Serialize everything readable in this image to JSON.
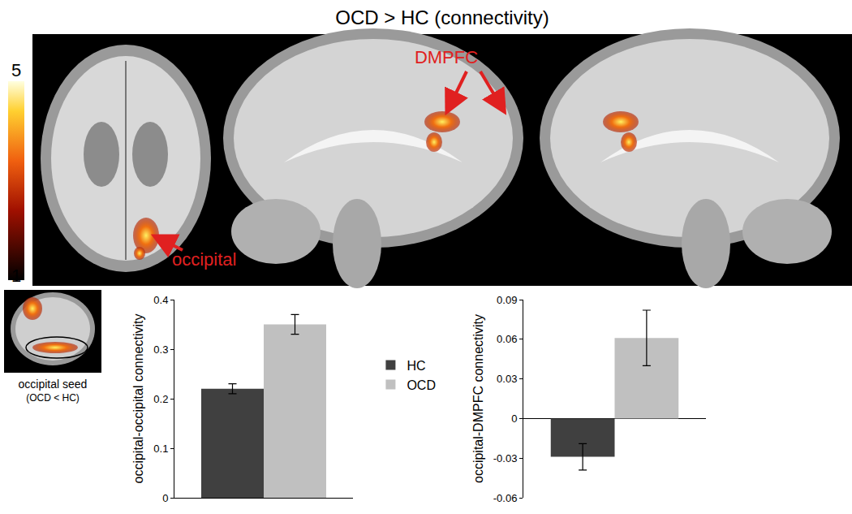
{
  "figure": {
    "title": "OCD > HC (connectivity)",
    "panel_labels": [
      "occipital",
      "DMPFC"
    ],
    "colorbar": {
      "range": [
        1,
        5
      ],
      "ticks": [
        1,
        5
      ]
    },
    "seed_label": "occipital seed",
    "seed_note": "(OCD < HC)"
  },
  "chart_data": [
    {
      "type": "bar",
      "y_label": "occipital-occipital connectivity",
      "categories": [
        null
      ],
      "series": [
        {
          "name": "HC",
          "color": "#404040",
          "values": [
            0.22
          ],
          "error": [
            0.01
          ]
        },
        {
          "name": "OCD",
          "color": "#c0c0c0",
          "values": [
            0.35
          ],
          "error": [
            0.02
          ]
        }
      ],
      "ylim": [
        0,
        0.4
      ],
      "yticks": [
        0,
        0.1,
        0.2,
        0.3,
        0.4
      ],
      "grid": false,
      "legend": "right"
    },
    {
      "type": "bar",
      "y_label": "occipital-DMPFC connectivity",
      "categories": [
        null
      ],
      "series": [
        {
          "name": "HC",
          "color": "#404040",
          "values": [
            -0.029
          ],
          "error": [
            0.01
          ]
        },
        {
          "name": "OCD",
          "color": "#c0c0c0",
          "values": [
            0.061
          ],
          "error": [
            0.021
          ]
        }
      ],
      "ylim": [
        -0.06,
        0.09
      ],
      "yticks": [
        -0.06,
        -0.03,
        0,
        0.03,
        0.06,
        0.09
      ],
      "grid": false
    }
  ]
}
